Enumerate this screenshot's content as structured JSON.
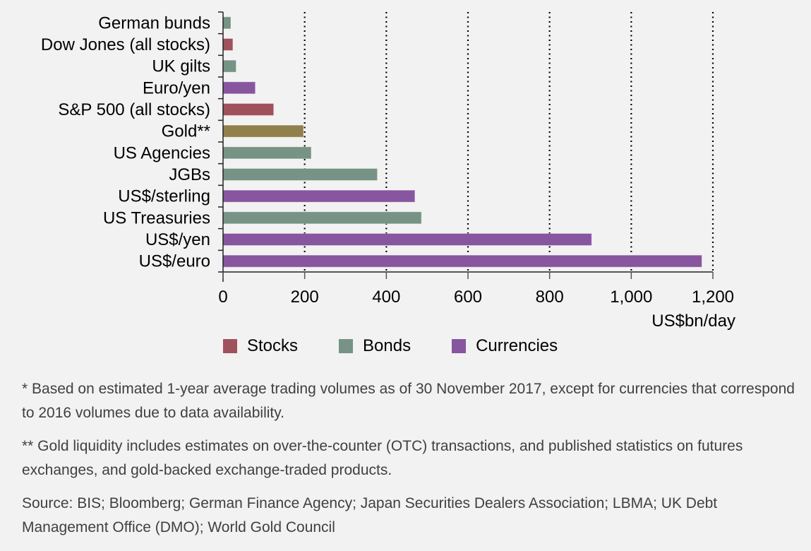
{
  "chart_data": {
    "type": "bar",
    "orientation": "horizontal",
    "title": "",
    "xlabel": "US$bn/day",
    "ylabel": "",
    "xlim": [
      0,
      1200
    ],
    "xticks": [
      0,
      200,
      400,
      600,
      800,
      1000,
      1200
    ],
    "xtick_labels": [
      "0",
      "200",
      "400",
      "600",
      "800",
      "1,000",
      "1,200"
    ],
    "grid": "vertical dotted",
    "categories": [
      "German bunds",
      "Dow Jones (all stocks)",
      "UK gilts",
      "Euro/yen",
      "S&P 500 (all stocks)",
      "Gold**",
      "US Agencies",
      "JGBs",
      "US$/sterling",
      "US Treasuries",
      "US$/yen",
      "US$/euro"
    ],
    "values": [
      19,
      24,
      32,
      79,
      124,
      197,
      216,
      378,
      470,
      486,
      903,
      1173
    ],
    "groups": [
      "Bonds",
      "Stocks",
      "Bonds",
      "Currencies",
      "Stocks",
      "Gold",
      "Bonds",
      "Bonds",
      "Currencies",
      "Bonds",
      "Currencies",
      "Currencies"
    ],
    "legend": [
      {
        "name": "Stocks",
        "color": "#a0525c"
      },
      {
        "name": "Bonds",
        "color": "#769386"
      },
      {
        "name": "Currencies",
        "color": "#87569f"
      }
    ],
    "group_colors": {
      "Stocks": "#a0525c",
      "Bonds": "#769386",
      "Currencies": "#87569f",
      "Gold": "#917f4c"
    },
    "legend_position": "bottom"
  },
  "notes": [
    "* Based on estimated 1-year average trading volumes as of 30 November 2017, except for currencies that correspond to 2016 volumes due to data availability.",
    "** Gold liquidity includes estimates on over-the-counter (OTC) transactions, and published statistics on futures exchanges, and gold-backed exchange-traded products.",
    "Source: BIS; Bloomberg; German Finance Agency; Japan Securities Dealers Association; LBMA; UK Debt Management Office (DMO); World Gold Council"
  ]
}
